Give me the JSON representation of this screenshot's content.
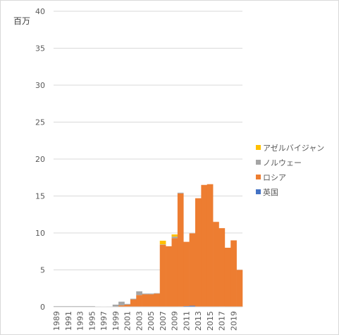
{
  "chart_data": {
    "type": "bar",
    "stacked": true,
    "unit_label": "百万",
    "ylim": [
      0,
      40
    ],
    "yticks": [
      0,
      5,
      10,
      15,
      20,
      25,
      30,
      35,
      40
    ],
    "grid": true,
    "legend_position": "right",
    "categories": [
      "1989",
      "1990",
      "1991",
      "1992",
      "1993",
      "1994",
      "1995",
      "1996",
      "1997",
      "1998",
      "1999",
      "2000",
      "2001",
      "2002",
      "2003",
      "2004",
      "2005",
      "2006",
      "2007",
      "2008",
      "2009",
      "2010",
      "2011",
      "2012",
      "2013",
      "2014",
      "2015",
      "2016",
      "2017",
      "2018",
      "2019",
      "2020"
    ],
    "xtick_labels": [
      "1989",
      "1991",
      "1993",
      "1995",
      "1997",
      "1999",
      "2001",
      "2003",
      "2005",
      "2007",
      "2009",
      "2011",
      "2013",
      "2015",
      "2017",
      "2019"
    ],
    "series": [
      {
        "name": "英国",
        "color": "#4472c4",
        "values": [
          0,
          0,
          0,
          0,
          0,
          0,
          0,
          0,
          0,
          0,
          0,
          0,
          0,
          0,
          0,
          0,
          0,
          0,
          0,
          0,
          0,
          0.05,
          0.1,
          0.15,
          0,
          0,
          0,
          0,
          0.05,
          0,
          0,
          0
        ]
      },
      {
        "name": "ロシア",
        "color": "#ed7d31",
        "values": [
          0,
          0,
          0,
          0,
          0,
          0,
          0,
          0,
          0,
          0,
          0,
          0.2,
          0.3,
          1.0,
          1.6,
          1.7,
          1.7,
          1.8,
          8.4,
          8.2,
          9.3,
          15.3,
          8.7,
          9.8,
          14.7,
          16.5,
          16.6,
          11.5,
          10.6,
          8.0,
          9.0,
          5.0
        ]
      },
      {
        "name": "ノルウェー",
        "color": "#a5a5a5",
        "values": [
          0.1,
          0.1,
          0.1,
          0.1,
          0.1,
          0.1,
          0.1,
          0.05,
          0,
          0.05,
          0.3,
          0.5,
          0.1,
          0.1,
          0.5,
          0.1,
          0.1,
          0.05,
          0.05,
          0,
          0.2,
          0.1,
          0,
          0,
          0,
          0,
          0,
          0,
          0,
          0,
          0,
          0
        ]
      },
      {
        "name": "アゼルバイジャン",
        "color": "#ffc000",
        "values": [
          0,
          0,
          0,
          0,
          0,
          0,
          0,
          0,
          0,
          0,
          0,
          0,
          0,
          0,
          0,
          0,
          0,
          0,
          0.5,
          0,
          0.3,
          0,
          0,
          0,
          0,
          0,
          0,
          0,
          0,
          0,
          0,
          0
        ]
      }
    ],
    "legend_order": [
      "アゼルバイジャン",
      "ノルウェー",
      "ロシア",
      "英国"
    ]
  }
}
